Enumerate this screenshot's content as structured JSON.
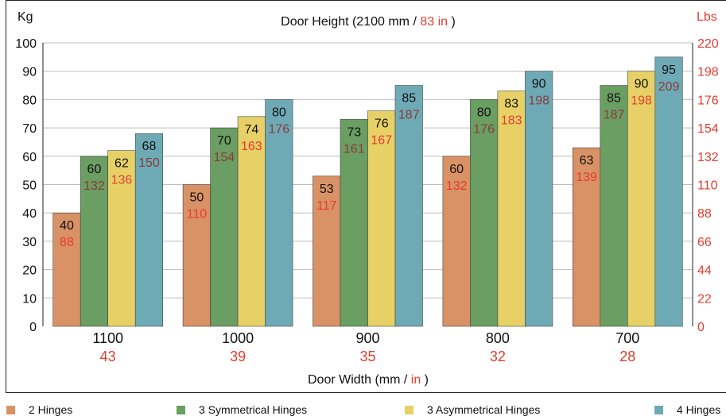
{
  "chart_data": {
    "type": "bar",
    "title_parts": [
      "Door Height (2100 mm / ",
      "83 in",
      " )"
    ],
    "xlabel_parts": [
      "Door Width (mm / ",
      "in",
      " )"
    ],
    "ylabel_left": "Kg",
    "ylabel_right": "Lbs",
    "ylim": [
      0,
      100
    ],
    "y_ticks_left": [
      "0",
      "10",
      "20",
      "30",
      "40",
      "50",
      "60",
      "70",
      "80",
      "90",
      "100"
    ],
    "y_ticks_right": [
      "0",
      "22",
      "44",
      "66",
      "88",
      "110",
      "132",
      "154",
      "176",
      "198",
      "220"
    ],
    "categories": [
      "1100",
      "1000",
      "900",
      "800",
      "700"
    ],
    "categories_in": [
      "43",
      "39",
      "35",
      "32",
      "28"
    ],
    "series": [
      {
        "name": "2 Hinges",
        "color": "#d99266",
        "values": [
          40,
          50,
          53,
          60,
          63
        ],
        "lbs": [
          88,
          110,
          117,
          132,
          139
        ],
        "lbs_color": "#e53b2e"
      },
      {
        "name": "3 Symmetrical Hinges",
        "color": "#6a9e62",
        "values": [
          60,
          70,
          73,
          80,
          85
        ],
        "lbs": [
          132,
          154,
          161,
          176,
          187
        ],
        "lbs_color": "#8b3a3a"
      },
      {
        "name": "3 Asymmetrical Hinges",
        "color": "#e7d166",
        "values": [
          62,
          74,
          76,
          83,
          90
        ],
        "lbs": [
          136,
          163,
          167,
          183,
          198
        ],
        "lbs_color": "#e53b2e"
      },
      {
        "name": "4 Hinges",
        "color": "#6eaab5",
        "values": [
          68,
          80,
          85,
          90,
          95
        ],
        "lbs": [
          150,
          176,
          187,
          198,
          209
        ],
        "lbs_color": "#8b3a3a"
      }
    ],
    "grid": true,
    "legend_position": "bottom",
    "accent_color": "#e53b2e"
  }
}
